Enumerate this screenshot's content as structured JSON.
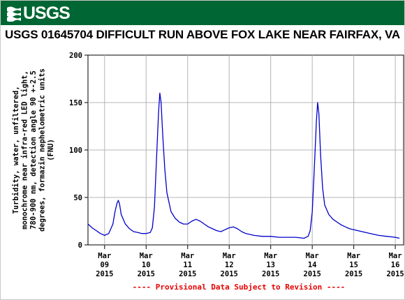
{
  "header": {
    "logo_text": "USGS",
    "banner_color": "#006633"
  },
  "chart_data": {
    "type": "line",
    "title": "USGS 01645704 DIFFICULT RUN ABOVE FOX LAKE NEAR FAIRFAX, VA",
    "ylabel_lines": [
      "Turbidity, water, unfiltered,",
      "monochrome near infra-red LED light,",
      "780-900 nm, detection angle 90 +-2.5",
      "degrees, formazin nephelometric units",
      "(FNU)"
    ],
    "xlabel": "",
    "ylim": [
      0,
      200
    ],
    "yticks": [
      0,
      50,
      100,
      150,
      200
    ],
    "xlim": [
      -0.4,
      7.2
    ],
    "xticks": [
      {
        "x": 0,
        "month": "Mar",
        "day": "09",
        "year": "2015"
      },
      {
        "x": 1,
        "month": "Mar",
        "day": "10",
        "year": "2015"
      },
      {
        "x": 2,
        "month": "Mar",
        "day": "11",
        "year": "2015"
      },
      {
        "x": 3,
        "month": "Mar",
        "day": "12",
        "year": "2015"
      },
      {
        "x": 4,
        "month": "Mar",
        "day": "13",
        "year": "2015"
      },
      {
        "x": 5,
        "month": "Mar",
        "day": "14",
        "year": "2015"
      },
      {
        "x": 6,
        "month": "Mar",
        "day": "15",
        "year": "2015"
      },
      {
        "x": 7,
        "month": "Mar",
        "day": "16",
        "year": "2015"
      }
    ],
    "grid": true,
    "line_color": "#0000cc",
    "series": [
      {
        "name": "",
        "points": [
          [
            -0.4,
            22
          ],
          [
            -0.3,
            18
          ],
          [
            -0.2,
            15
          ],
          [
            -0.1,
            12
          ],
          [
            0.0,
            10
          ],
          [
            0.1,
            12
          ],
          [
            0.2,
            22
          ],
          [
            0.25,
            35
          ],
          [
            0.3,
            44
          ],
          [
            0.33,
            47
          ],
          [
            0.36,
            43
          ],
          [
            0.4,
            32
          ],
          [
            0.5,
            22
          ],
          [
            0.6,
            17
          ],
          [
            0.7,
            14
          ],
          [
            0.8,
            13
          ],
          [
            0.9,
            12
          ],
          [
            1.0,
            12
          ],
          [
            1.1,
            13
          ],
          [
            1.15,
            18
          ],
          [
            1.2,
            40
          ],
          [
            1.25,
            90
          ],
          [
            1.3,
            140
          ],
          [
            1.33,
            160
          ],
          [
            1.36,
            150
          ],
          [
            1.4,
            115
          ],
          [
            1.45,
            80
          ],
          [
            1.5,
            55
          ],
          [
            1.6,
            35
          ],
          [
            1.7,
            28
          ],
          [
            1.8,
            24
          ],
          [
            1.9,
            22
          ],
          [
            2.0,
            22
          ],
          [
            2.1,
            25
          ],
          [
            2.2,
            27
          ],
          [
            2.3,
            25
          ],
          [
            2.4,
            22
          ],
          [
            2.5,
            19
          ],
          [
            2.6,
            17
          ],
          [
            2.7,
            15
          ],
          [
            2.8,
            14
          ],
          [
            2.9,
            16
          ],
          [
            3.0,
            18
          ],
          [
            3.1,
            19
          ],
          [
            3.2,
            17
          ],
          [
            3.3,
            14
          ],
          [
            3.4,
            12
          ],
          [
            3.5,
            11
          ],
          [
            3.6,
            10
          ],
          [
            3.8,
            9
          ],
          [
            4.0,
            9
          ],
          [
            4.2,
            8
          ],
          [
            4.4,
            8
          ],
          [
            4.6,
            8
          ],
          [
            4.8,
            7
          ],
          [
            4.9,
            9
          ],
          [
            4.95,
            15
          ],
          [
            5.0,
            35
          ],
          [
            5.05,
            80
          ],
          [
            5.1,
            130
          ],
          [
            5.13,
            150
          ],
          [
            5.16,
            138
          ],
          [
            5.2,
            95
          ],
          [
            5.25,
            60
          ],
          [
            5.3,
            42
          ],
          [
            5.4,
            32
          ],
          [
            5.5,
            27
          ],
          [
            5.6,
            24
          ],
          [
            5.7,
            21
          ],
          [
            5.8,
            19
          ],
          [
            5.9,
            17
          ],
          [
            6.0,
            16
          ],
          [
            6.2,
            14
          ],
          [
            6.4,
            12
          ],
          [
            6.6,
            10
          ],
          [
            6.8,
            9
          ],
          [
            7.0,
            8
          ],
          [
            7.1,
            7
          ]
        ]
      }
    ]
  },
  "footer": {
    "note": "---- Provisional Data Subject to Revision ----"
  }
}
